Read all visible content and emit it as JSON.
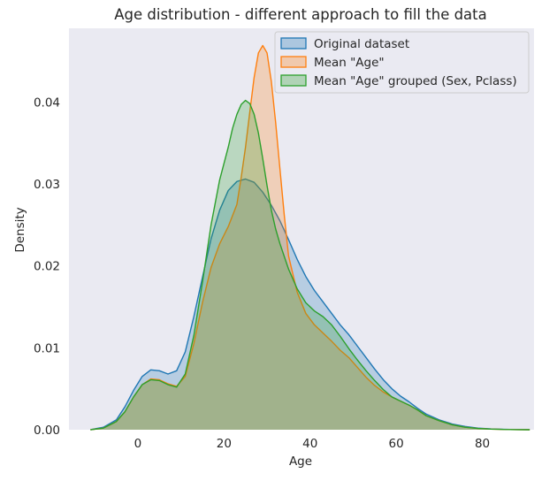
{
  "chart_data": {
    "type": "area",
    "title": "Age distribution - different approach to fill the data",
    "xlabel": "Age",
    "ylabel": "Density",
    "xlim": [
      -16,
      92
    ],
    "ylim": [
      0,
      0.049
    ],
    "xticks": [
      0,
      20,
      40,
      60,
      80
    ],
    "yticks": [
      0.0,
      0.01,
      0.02,
      0.03,
      0.04
    ],
    "xtick_labels": [
      "0",
      "20",
      "40",
      "60",
      "80"
    ],
    "ytick_labels": [
      "0.00",
      "0.01",
      "0.02",
      "0.03",
      "0.04"
    ],
    "grid": false,
    "background": "#eaeaf2",
    "legend_position": "top-right",
    "series": [
      {
        "name": "Original dataset",
        "color": "#1f77b4",
        "x": [
          -11,
          -8,
          -5,
          -3,
          -1,
          1,
          3,
          5,
          7,
          9,
          11,
          13,
          15,
          17,
          19,
          21,
          23,
          25,
          27,
          29,
          31,
          33,
          35,
          37,
          39,
          41,
          43,
          45,
          47,
          49,
          51,
          53,
          55,
          57,
          59,
          61,
          63,
          65,
          67,
          70,
          73,
          76,
          79,
          82,
          85,
          88,
          91
        ],
        "y": [
          0.0,
          0.0003,
          0.0012,
          0.0028,
          0.0048,
          0.0065,
          0.0073,
          0.0072,
          0.0068,
          0.0072,
          0.0095,
          0.0138,
          0.0186,
          0.0233,
          0.0268,
          0.0292,
          0.0303,
          0.0306,
          0.0302,
          0.029,
          0.0274,
          0.0255,
          0.0232,
          0.0208,
          0.0187,
          0.017,
          0.0156,
          0.0142,
          0.0128,
          0.0116,
          0.0102,
          0.0088,
          0.0074,
          0.0061,
          0.005,
          0.0041,
          0.0034,
          0.0026,
          0.0019,
          0.0012,
          0.0007,
          0.0004,
          0.0002,
          0.0001,
          5e-05,
          2e-05,
          0.0
        ]
      },
      {
        "name": "Mean \"Age\"",
        "color": "#ff7f0e",
        "x": [
          -11,
          -8,
          -5,
          -3,
          -1,
          1,
          3,
          5,
          7,
          9,
          11,
          13,
          15,
          17,
          19,
          21,
          23,
          24,
          25,
          26,
          27,
          28,
          29,
          30,
          31,
          32,
          33,
          34,
          35,
          37,
          39,
          41,
          43,
          45,
          47,
          49,
          51,
          53,
          55,
          57,
          59,
          61,
          63,
          65,
          67,
          70,
          73,
          76,
          79,
          82,
          85,
          88,
          91
        ],
        "y": [
          0.0,
          0.0002,
          0.001,
          0.0022,
          0.004,
          0.0055,
          0.0062,
          0.0061,
          0.0056,
          0.0053,
          0.0065,
          0.0105,
          0.0155,
          0.0198,
          0.0227,
          0.0248,
          0.0275,
          0.0308,
          0.0345,
          0.0388,
          0.043,
          0.046,
          0.0469,
          0.046,
          0.0425,
          0.0375,
          0.0318,
          0.0262,
          0.0212,
          0.0168,
          0.0142,
          0.0128,
          0.0118,
          0.0108,
          0.0097,
          0.0088,
          0.0076,
          0.0064,
          0.0054,
          0.0046,
          0.004,
          0.0035,
          0.003,
          0.0024,
          0.0017,
          0.0011,
          0.0006,
          0.0003,
          0.00015,
          7e-05,
          3e-05,
          1e-05,
          0.0
        ]
      },
      {
        "name": "Mean \"Age\" grouped (Sex, Pclass)",
        "color": "#2ca02c",
        "x": [
          -11,
          -8,
          -5,
          -3,
          -1,
          1,
          3,
          5,
          7,
          9,
          11,
          13,
          15,
          17,
          19,
          21,
          22,
          23,
          24,
          25,
          26,
          27,
          28,
          29,
          30,
          31,
          32,
          33,
          35,
          37,
          39,
          41,
          43,
          45,
          47,
          49,
          51,
          53,
          55,
          57,
          59,
          61,
          63,
          65,
          67,
          70,
          73,
          76,
          79,
          82,
          85,
          88,
          91
        ],
        "y": [
          0.0,
          0.0002,
          0.001,
          0.0022,
          0.004,
          0.0055,
          0.0061,
          0.006,
          0.0055,
          0.0052,
          0.0068,
          0.0115,
          0.018,
          0.025,
          0.0305,
          0.0345,
          0.0368,
          0.0385,
          0.0397,
          0.0402,
          0.0398,
          0.0385,
          0.0362,
          0.0331,
          0.0298,
          0.0268,
          0.0245,
          0.0227,
          0.0196,
          0.0172,
          0.0155,
          0.0145,
          0.0138,
          0.0128,
          0.0114,
          0.0099,
          0.0085,
          0.0072,
          0.006,
          0.0049,
          0.004,
          0.0035,
          0.003,
          0.0024,
          0.0017,
          0.0011,
          0.0006,
          0.0003,
          0.00015,
          7e-05,
          3e-05,
          1e-05,
          0.0
        ]
      }
    ]
  }
}
